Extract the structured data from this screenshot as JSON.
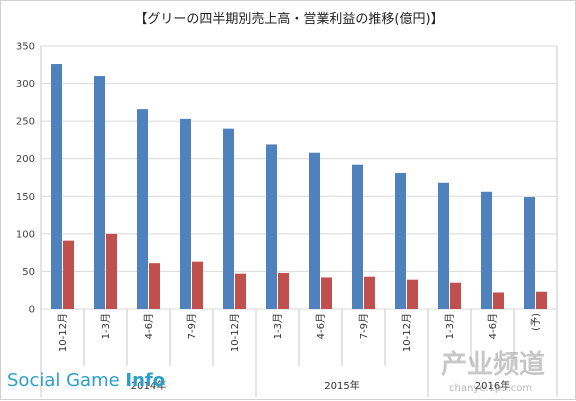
{
  "chart_data": {
    "type": "bar",
    "title": "【グリーの四半期別売上高・営業利益の推移(億円)】",
    "categories": [
      "10-12月",
      "1-3月",
      "4-6月",
      "7-9月",
      "10-12月",
      "1-3月",
      "4-6月",
      "7-9月",
      "10-12月",
      "1-3月",
      "4-6月",
      "(予)"
    ],
    "groups": [
      {
        "label": "2014年",
        "start": 0,
        "end": 4
      },
      {
        "label": "2015年",
        "start": 5,
        "end": 8
      },
      {
        "label": "2016年",
        "start": 9,
        "end": 11
      }
    ],
    "series": [
      {
        "name": "",
        "color": "#4f81bd",
        "values": [
          326,
          310,
          266,
          253,
          240,
          219,
          208,
          192,
          181,
          168,
          156,
          149
        ]
      },
      {
        "name": "",
        "color": "#c0504d",
        "values": [
          91,
          100,
          61,
          63,
          47,
          48,
          42,
          43,
          39,
          35,
          22,
          23
        ]
      }
    ],
    "ylim": [
      0,
      350
    ],
    "yticks": [
      0,
      50,
      100,
      150,
      200,
      250,
      300,
      350
    ],
    "xlabel": "",
    "ylabel": "",
    "grid": true,
    "legend": "none"
  },
  "branding": {
    "logo_text_light": "Social Game ",
    "logo_text_bold": "Info",
    "watermark_big": "产业频道",
    "watermark_small": "chanye.1p3.com"
  }
}
